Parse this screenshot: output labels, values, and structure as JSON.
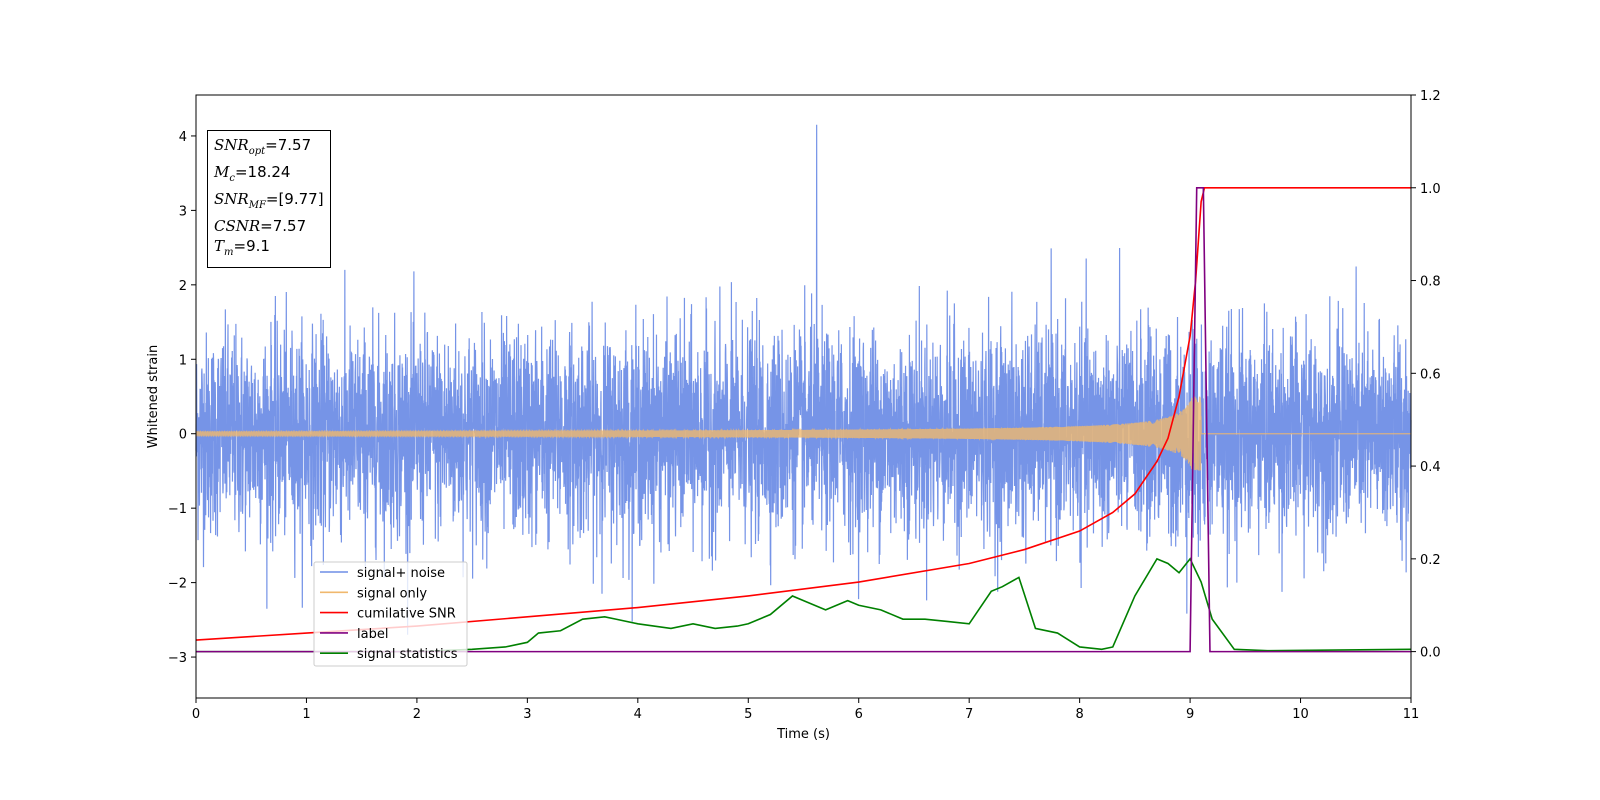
{
  "chart_data": {
    "type": "line",
    "xlabel": "Time (s)",
    "ylabel": "Whitened strain",
    "xlim": [
      0,
      11
    ],
    "ylim": [
      -3.55,
      4.55
    ],
    "y2lim": [
      -0.1,
      1.2
    ],
    "x_ticks": [
      "0",
      "1",
      "2",
      "3",
      "4",
      "5",
      "6",
      "7",
      "8",
      "9",
      "10",
      "11"
    ],
    "y_ticks": [
      "−3",
      "−2",
      "−1",
      "0",
      "1",
      "2",
      "3",
      "4"
    ],
    "y_tick_values": [
      -3,
      -2,
      -1,
      0,
      1,
      2,
      3,
      4
    ],
    "y2_ticks": [
      "0.0",
      "0.2",
      "0.4",
      "0.6",
      "0.8",
      "1.0",
      "1.2"
    ],
    "y2_tick_values": [
      0,
      0.2,
      0.4,
      0.6,
      0.8,
      1.0,
      1.2
    ],
    "series": [
      {
        "name": "signal+ noise",
        "color": "#6f8ee6",
        "axis": "left",
        "noise_amplitude": 1.3,
        "peak_value": 4.15,
        "peak_time": 5.62
      },
      {
        "name": "signal only",
        "color": "#f0b86e",
        "axis": "left",
        "chirp_start": 0.0,
        "merger_time": 9.1,
        "peak_amplitude": 0.5
      },
      {
        "name": "cumilative SNR",
        "color": "#ff0000",
        "axis": "right",
        "x": [
          0,
          1,
          2,
          3,
          4,
          5,
          6,
          7,
          7.5,
          8,
          8.3,
          8.5,
          8.7,
          8.8,
          8.9,
          9.0,
          9.05,
          9.1,
          9.13,
          11
        ],
        "y": [
          0.025,
          0.04,
          0.055,
          0.075,
          0.095,
          0.12,
          0.15,
          0.19,
          0.22,
          0.26,
          0.3,
          0.34,
          0.41,
          0.46,
          0.55,
          0.68,
          0.8,
          0.97,
          1.0,
          1.0
        ]
      },
      {
        "name": "label",
        "color": "#800080",
        "axis": "right",
        "x": [
          0,
          9.0,
          9.06,
          9.12,
          9.18,
          11
        ],
        "y": [
          0.0,
          0.0,
          1.0,
          1.0,
          0.0,
          0.0
        ]
      },
      {
        "name": "signal statistics",
        "color": "#008000",
        "axis": "right",
        "x": [
          0,
          2.0,
          2.5,
          2.8,
          3.0,
          3.1,
          3.3,
          3.5,
          3.7,
          3.8,
          4.0,
          4.3,
          4.5,
          4.7,
          4.9,
          5.0,
          5.2,
          5.4,
          5.5,
          5.7,
          5.8,
          5.9,
          6.0,
          6.2,
          6.4,
          6.6,
          6.8,
          7.0,
          7.2,
          7.3,
          7.45,
          7.6,
          7.8,
          8.0,
          8.2,
          8.3,
          8.5,
          8.7,
          8.8,
          8.9,
          9.0,
          9.1,
          9.2,
          9.4,
          9.7,
          11
        ],
        "y": [
          0.0,
          0.0,
          0.005,
          0.01,
          0.02,
          0.04,
          0.045,
          0.07,
          0.075,
          0.07,
          0.06,
          0.05,
          0.06,
          0.05,
          0.055,
          0.06,
          0.08,
          0.12,
          0.11,
          0.09,
          0.1,
          0.11,
          0.1,
          0.09,
          0.07,
          0.07,
          0.065,
          0.06,
          0.13,
          0.14,
          0.16,
          0.05,
          0.04,
          0.01,
          0.005,
          0.01,
          0.12,
          0.2,
          0.19,
          0.17,
          0.2,
          0.15,
          0.07,
          0.005,
          0.002,
          0.005
        ]
      }
    ],
    "legend": {
      "placement": "lower-left",
      "entries": [
        "signal+ noise",
        "signal only",
        "cumilative SNR",
        "label",
        "signal statistics"
      ]
    }
  },
  "info": {
    "snr_opt_var": "SNR",
    "snr_opt_sub": "opt",
    "snr_opt_val": "=7.57",
    "mc_var": "M",
    "mc_sub": "c",
    "mc_val": "=18.24",
    "snr_mf_var": "SNR",
    "snr_mf_sub": "MF",
    "snr_mf_val": "=[9.77]",
    "csnr_var": "CSNR",
    "csnr_val": "=7.57",
    "tm_var": "T",
    "tm_sub": "m",
    "tm_val": "=9.1"
  }
}
